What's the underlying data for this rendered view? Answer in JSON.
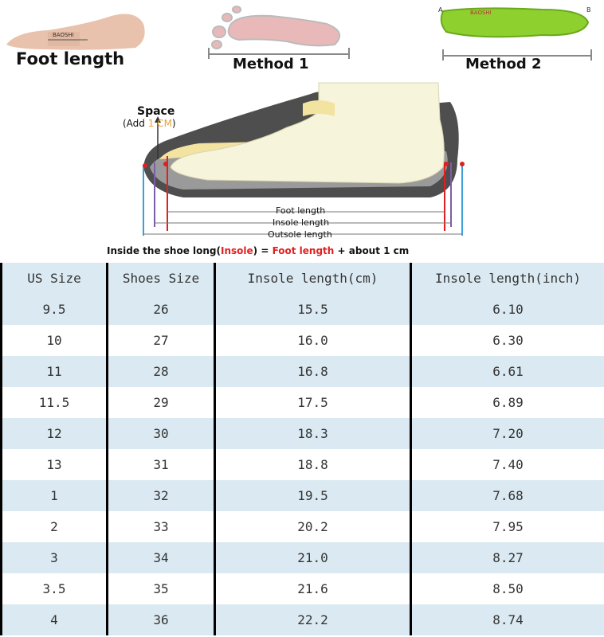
{
  "header": {
    "foot_length_label": "Foot length",
    "method1_label": "Method 1",
    "method2_label": "Method 2",
    "insole_brand": "BAOSHI",
    "marker_a": "A",
    "marker_b": "B"
  },
  "diagram": {
    "space_title": "Space",
    "space_add_prefix": "(Add ",
    "space_add_value": "1 CM",
    "space_add_suffix": ")",
    "foot_length_line": "Foot length",
    "insole_length_line": "Insole length",
    "outsole_length_line": "Outsole length",
    "formula_prefix": "Inside the shoe long(",
    "formula_insole": "Insole",
    "formula_mid": ") = ",
    "formula_foot": "Foot length",
    "formula_suffix": " + about 1 cm",
    "colors": {
      "highlight": "#e8a33a",
      "red": "#e02020",
      "sole": "#555555",
      "insole": "#f3e3a0",
      "foot": "#f7f4dc"
    }
  },
  "table": {
    "headers": [
      "US Size",
      "Shoes Size",
      "Insole length(cm)",
      "Insole length(inch)"
    ],
    "rows": [
      [
        "9.5",
        "26",
        "15.5",
        "6.10"
      ],
      [
        "10",
        "27",
        "16.0",
        "6.30"
      ],
      [
        "11",
        "28",
        "16.8",
        "6.61"
      ],
      [
        "11.5",
        "29",
        "17.5",
        "6.89"
      ],
      [
        "12",
        "30",
        "18.3",
        "7.20"
      ],
      [
        "13",
        "31",
        "18.8",
        "7.40"
      ],
      [
        "1",
        "32",
        "19.5",
        "7.68"
      ],
      [
        "2",
        "33",
        "20.2",
        "7.95"
      ],
      [
        "3",
        "34",
        "21.0",
        "8.27"
      ],
      [
        "3.5",
        "35",
        "21.6",
        "8.50"
      ],
      [
        "4",
        "36",
        "22.2",
        "8.74"
      ]
    ],
    "row_colors": {
      "odd": "#dbeaf2",
      "even": "#ffffff"
    }
  }
}
